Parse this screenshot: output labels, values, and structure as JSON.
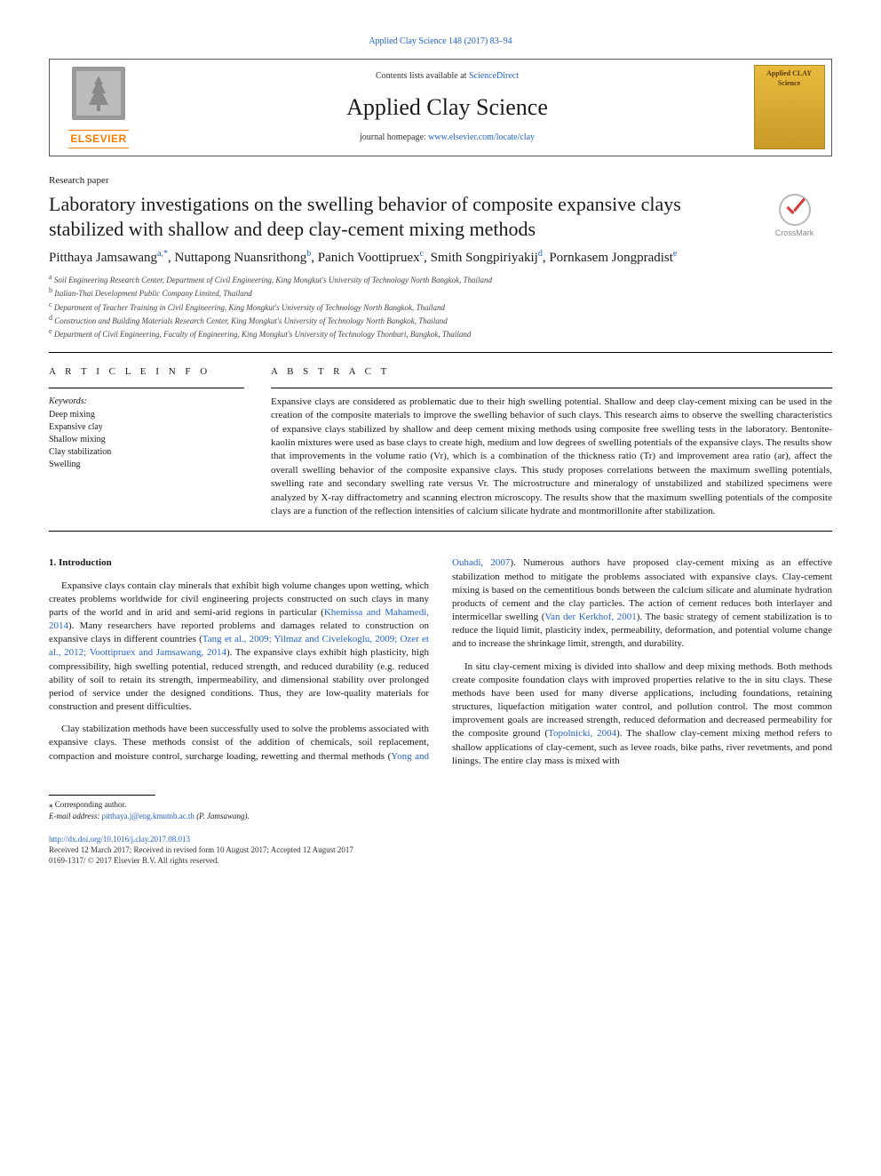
{
  "journal_ref": "Applied Clay Science 148 (2017) 83–94",
  "header": {
    "contents_prefix": "Contents lists available at ",
    "contents_link": "ScienceDirect",
    "journal_name": "Applied Clay Science",
    "homepage_prefix": "journal homepage: ",
    "homepage_link": "www.elsevier.com/locate/clay",
    "publisher_logo_text": "ELSEVIER",
    "cover_text": "Applied CLAY Science"
  },
  "article_type": "Research paper",
  "title": "Laboratory investigations on the swelling behavior of composite expansive clays stabilized with shallow and deep clay-cement mixing methods",
  "crossmark": "CrossMark",
  "authors": [
    {
      "name": "Pitthaya Jamsawang",
      "aff": "a,",
      "corr": "*"
    },
    {
      "name": "Nuttapong Nuansrithong",
      "aff": "b"
    },
    {
      "name": "Panich Voottipruex",
      "aff": "c"
    },
    {
      "name": "Smith Songpiriyakij",
      "aff": "d"
    },
    {
      "name": "Pornkasem Jongpradist",
      "aff": "e"
    }
  ],
  "affiliations": [
    {
      "sup": "a",
      "text": "Soil Engineering Research Center, Department of Civil Engineering, King Mongkut's University of Technology North Bangkok, Thailand"
    },
    {
      "sup": "b",
      "text": "Italian-Thai Development Public Company Limited, Thailand"
    },
    {
      "sup": "c",
      "text": "Department of Teacher Training in Civil Engineering, King Mongkut's University of Technology North Bangkok, Thailand"
    },
    {
      "sup": "d",
      "text": "Construction and Building Materials Research Center, King Mongkut's University of Technology North Bangkok, Thailand"
    },
    {
      "sup": "e",
      "text": "Department of Civil Engineering, Faculty of Engineering, King Mongkut's University of Technology Thonburi, Bangkok, Thailand"
    }
  ],
  "info_head": "A R T I C L E  I N F O",
  "abs_head": "A B S T R A C T",
  "keywords_label": "Keywords:",
  "keywords": [
    "Deep mixing",
    "Expansive clay",
    "Shallow mixing",
    "Clay stabilization",
    "Swelling"
  ],
  "abstract": "Expansive clays are considered as problematic due to their high swelling potential. Shallow and deep clay-cement mixing can be used in the creation of the composite materials to improve the swelling behavior of such clays. This research aims to observe the swelling characteristics of expansive clays stabilized by shallow and deep cement mixing methods using composite free swelling tests in the laboratory. Bentonite-kaolin mixtures were used as base clays to create high, medium and low degrees of swelling potentials of the expansive clays. The results show that improvements in the volume ratio (Vr), which is a combination of the thickness ratio (Tr) and improvement area ratio (ar), affect the overall swelling behavior of the composite expansive clays. This study proposes correlations between the maximum swelling potentials, swelling rate and secondary swelling rate versus Vr. The microstructure and mineralogy of unstabilized and stabilized specimens were analyzed by X-ray diffractometry and scanning electron microscopy. The results show that the maximum swelling potentials of the composite clays are a function of the reflection intensities of calcium silicate hydrate and montmorillonite after stabilization.",
  "intro_head": "1. Introduction",
  "intro": {
    "p1a": "Expansive clays contain clay minerals that exhibit high volume changes upon wetting, which creates problems worldwide for civil engineering projects constructed on such clays in many parts of the world and in arid and semi-arid regions in particular (",
    "r1": "Khemissa and Mahamedi, 2014",
    "p1b": "). Many researchers have reported problems and damages related to construction on expansive clays in different countries (",
    "r2": "Tang et al., 2009; Yilmaz and Civelekoglu, 2009; Ozer et al., 2012; Voottipruex and Jamsawang, 2014",
    "p1c": "). The expansive clays exhibit high plasticity, high compressibility, high swelling potential, reduced strength, and reduced durability (e.g. reduced ability of soil to retain its strength, impermeability, and dimensional stability over prolonged period of service under the designed conditions. Thus, they are low-quality materials for construction and present difficulties.",
    "p2a": "Clay stabilization methods have been successfully used to solve the problems associated with expansive clays. These methods consist of the addition of chemicals, soil replacement, compaction and moisture control, surcharge loading, rewetting and thermal methods (",
    "r3": "Yong and Ouhadi, 2007",
    "p2b": "). Numerous authors have proposed clay-cement mixing as an effective stabilization method to mitigate the problems associated with expansive clays. Clay-cement mixing is based on the cementitious bonds between the calcium silicate and aluminate hydration products of cement and the clay particles. The action of cement reduces both interlayer and intermicellar swelling (",
    "r4": "Van der Kerkhof, 2001",
    "p2c": "). The basic strategy of cement stabilization is to reduce the liquid limit, plasticity index, permeability, deformation, and potential volume change and to increase the shrinkage limit, strength, and durability.",
    "p3a": "In situ clay-cement mixing is divided into shallow and deep mixing methods. Both methods create composite foundation clays with improved properties relative to the in situ clays. These methods have been used for many diverse applications, including foundations, retaining structures, liquefaction mitigation water control, and pollution control. The most common improvement goals are increased strength, reduced deformation and decreased permeability for the composite ground (",
    "r5": "Topolnicki, 2004",
    "p3b": "). The shallow clay-cement mixing method refers to shallow applications of clay-cement, such as levee roads, bike paths, river revetments, and pond linings. The entire clay mass is mixed with"
  },
  "footer": {
    "corr_label": "⁎ Corresponding author.",
    "email_label": "E-mail address: ",
    "email": "pitthaya.j@eng.kmutnb.ac.th",
    "email_suffix": " (P. Jamsawang).",
    "doi": "http://dx.doi.org/10.1016/j.clay.2017.08.013",
    "dates": "Received 12 March 2017; Received in revised form 10 August 2017; Accepted 12 August 2017",
    "copyright": "0169-1317/ © 2017 Elsevier B.V. All rights reserved."
  },
  "colors": {
    "link": "#2563c9",
    "publisher": "#ff7a00",
    "text": "#1a1a1a"
  }
}
